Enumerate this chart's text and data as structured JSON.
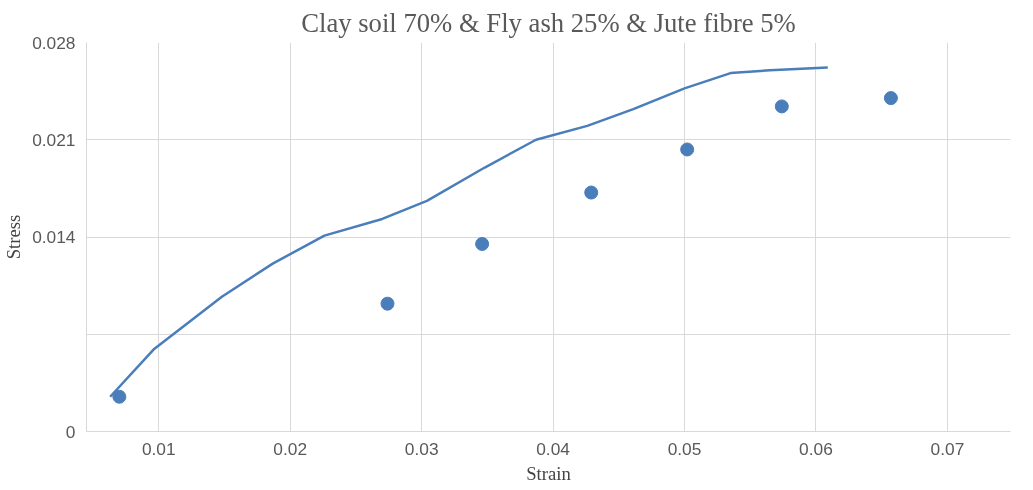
{
  "chart_data": {
    "type": "scatter",
    "title": "Clay soil 70% & Fly ash 25% & Jute fibre 5%",
    "xlabel": "Strain",
    "ylabel": "Stress",
    "xlim": [
      0.0045,
      0.0748
    ],
    "xticks": [
      0.01,
      0.02,
      0.03,
      0.04,
      0.05,
      0.06,
      0.07
    ],
    "ylim": [
      0,
      0.028
    ],
    "yticks": [
      0,
      {
        "value": 0.007,
        "label": null
      },
      0.014,
      0.021,
      0.028
    ],
    "grid": true,
    "series": [
      {
        "marker": "circle",
        "color": "#4a7ebb",
        "x": [
          0.007,
          0.0274,
          0.0346,
          0.0429,
          0.0502,
          0.0574,
          0.0657
        ],
        "values": [
          0.0025,
          0.0092,
          0.0135,
          0.0172,
          0.0203,
          0.0234,
          0.024
        ]
      },
      {
        "type": "line",
        "marker": "none",
        "color": "#4a7ebb",
        "line_style": "solid",
        "x": [
          0.0063,
          0.0096,
          0.0148,
          0.0187,
          0.0226,
          0.027,
          0.0304,
          0.0348,
          0.0387,
          0.0426,
          0.0461,
          0.05,
          0.0535,
          0.0565,
          0.0609
        ],
        "values": [
          0.0025,
          0.0059,
          0.0097,
          0.0121,
          0.0141,
          0.0153,
          0.0166,
          0.019,
          0.021,
          0.022,
          0.0232,
          0.0247,
          0.0258,
          0.026,
          0.0262
        ]
      }
    ]
  }
}
